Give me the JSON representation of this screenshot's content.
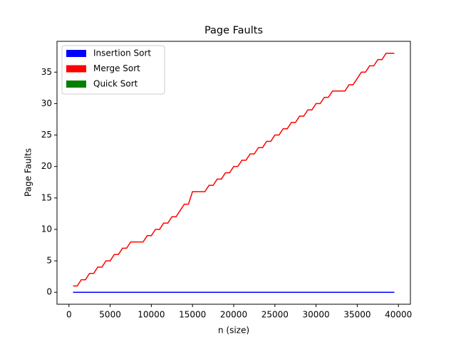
{
  "chart_data": {
    "type": "line",
    "title": "Page Faults",
    "xlabel": "n (size)",
    "ylabel": "Page Faults",
    "x": [
      500,
      1000,
      1500,
      2000,
      2500,
      3000,
      3500,
      4000,
      4500,
      5000,
      5500,
      6000,
      6500,
      7000,
      7500,
      8000,
      8500,
      9000,
      9500,
      10000,
      10500,
      11000,
      11500,
      12000,
      12500,
      13000,
      13500,
      14000,
      14500,
      15000,
      15500,
      16000,
      16500,
      17000,
      17500,
      18000,
      18500,
      19000,
      19500,
      20000,
      20500,
      21000,
      21500,
      22000,
      22500,
      23000,
      23500,
      24000,
      24500,
      25000,
      25500,
      26000,
      26500,
      27000,
      27500,
      28000,
      28500,
      29000,
      29500,
      30000,
      30500,
      31000,
      31500,
      32000,
      32500,
      33000,
      33500,
      34000,
      34500,
      35000,
      35500,
      36000,
      36500,
      37000,
      37500,
      38000,
      38500,
      39000,
      39500
    ],
    "series": [
      {
        "name": "Insertion Sort",
        "color": "#0000ff",
        "values": [
          0,
          0,
          0,
          0,
          0,
          0,
          0,
          0,
          0,
          0,
          0,
          0,
          0,
          0,
          0,
          0,
          0,
          0,
          0,
          0,
          0,
          0,
          0,
          0,
          0,
          0,
          0,
          0,
          0,
          0,
          0,
          0,
          0,
          0,
          0,
          0,
          0,
          0,
          0,
          0,
          0,
          0,
          0,
          0,
          0,
          0,
          0,
          0,
          0,
          0,
          0,
          0,
          0,
          0,
          0,
          0,
          0,
          0,
          0,
          0,
          0,
          0,
          0,
          0,
          0,
          0,
          0,
          0,
          0,
          0,
          0,
          0,
          0,
          0,
          0,
          0,
          0,
          0,
          0
        ]
      },
      {
        "name": "Merge Sort",
        "color": "#ff0000",
        "values": [
          1,
          1,
          2,
          2,
          3,
          3,
          4,
          4,
          5,
          5,
          6,
          6,
          7,
          7,
          8,
          8,
          8,
          8,
          9,
          9,
          10,
          10,
          11,
          11,
          12,
          12,
          13,
          14,
          14,
          16,
          16,
          16,
          16,
          17,
          17,
          18,
          18,
          19,
          19,
          20,
          20,
          21,
          21,
          22,
          22,
          23,
          23,
          24,
          24,
          25,
          25,
          26,
          26,
          27,
          27,
          28,
          28,
          29,
          29,
          30,
          30,
          31,
          31,
          32,
          32,
          32,
          32,
          33,
          33,
          34,
          35,
          35,
          36,
          36,
          37,
          37,
          38,
          38,
          38
        ]
      },
      {
        "name": "Quick Sort",
        "color": "#008000",
        "values": [
          0,
          0,
          0,
          0,
          0,
          0,
          0,
          0,
          0,
          0,
          0,
          0,
          0,
          0,
          0,
          0,
          0,
          0,
          0,
          0,
          0,
          0,
          0,
          0,
          0,
          0,
          0,
          0,
          0,
          0,
          0,
          0,
          0,
          0,
          0,
          0,
          0,
          0,
          0,
          0,
          0,
          0,
          0,
          0,
          0,
          0,
          0,
          0,
          0,
          0,
          0,
          0,
          0,
          0,
          0,
          0,
          0,
          0,
          0,
          0,
          0,
          0,
          0,
          0,
          0,
          0,
          0,
          0,
          0,
          0,
          0,
          0,
          0,
          0,
          0,
          0,
          0,
          0,
          0
        ]
      }
    ],
    "xlim": [
      -1450,
      41450
    ],
    "xticks": [
      0,
      5000,
      10000,
      15000,
      20000,
      25000,
      30000,
      35000,
      40000
    ],
    "ylim": [
      -1.9,
      39.9
    ],
    "yticks": [
      0,
      5,
      10,
      15,
      20,
      25,
      30,
      35
    ],
    "legend": "upper left"
  }
}
